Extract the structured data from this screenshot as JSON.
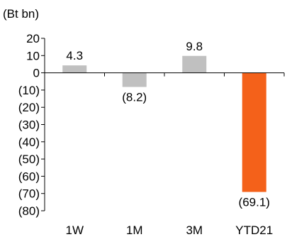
{
  "chart_data": {
    "type": "bar",
    "unit_label": "(Bt bn)",
    "categories": [
      "1W",
      "1M",
      "3M",
      "YTD21"
    ],
    "values": [
      4.3,
      -8.2,
      9.8,
      -69.1
    ],
    "data_labels": [
      "4.3",
      "(8.2)",
      "9.8",
      "(69.1)"
    ],
    "y_ticks": [
      20,
      10,
      0,
      -10,
      -20,
      -30,
      -40,
      -50,
      -60,
      -70,
      -80
    ],
    "y_tick_labels": [
      "20",
      "10",
      "0",
      "(10)",
      "(20)",
      "(30)",
      "(40)",
      "(50)",
      "(60)",
      "(70)",
      "(80)"
    ],
    "ylim": [
      -80,
      20
    ],
    "grid": false,
    "colors": {
      "default_bar": "#c0c0c0",
      "highlight_bar": "#f4611a",
      "axis": "#000000"
    },
    "bar_colors": [
      "#c0c0c0",
      "#c0c0c0",
      "#c0c0c0",
      "#f4611a"
    ]
  }
}
